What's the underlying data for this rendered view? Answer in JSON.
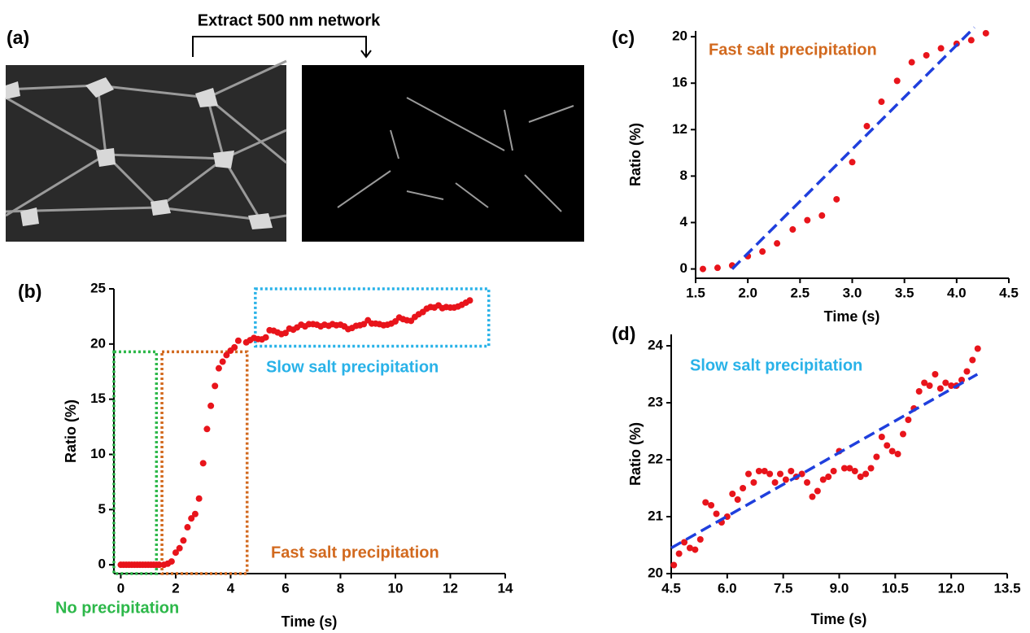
{
  "panel_a": {
    "label": "(a)",
    "annotation": "Extract 500 nm network"
  },
  "chart_data": [
    {
      "type": "scatter",
      "label": "(b)",
      "xlabel": "Time (s)",
      "ylabel": "Ratio (%)",
      "color": "#e8141b",
      "xlim": [
        -0.25,
        14
      ],
      "ylim": [
        -0.8,
        25
      ],
      "xticks": [
        0,
        2,
        4,
        6,
        8,
        10,
        12,
        14
      ],
      "yticks": [
        0,
        5,
        10,
        15,
        20,
        25
      ],
      "x": [
        0,
        0.1,
        0.2,
        0.3,
        0.4,
        0.5,
        0.6,
        0.7,
        0.8,
        0.9,
        1.0,
        1.1,
        1.2,
        1.3,
        1.4,
        1.57,
        1.71,
        1.85,
        2.0,
        2.14,
        2.28,
        2.43,
        2.57,
        2.71,
        2.85,
        3.0,
        3.14,
        3.28,
        3.43,
        3.57,
        3.71,
        3.85,
        4.0,
        4.14,
        4.28,
        4.57,
        4.71,
        4.85,
        5.0,
        5.14,
        5.28,
        5.42,
        5.57,
        5.71,
        5.85,
        6.0,
        6.14,
        6.28,
        6.42,
        6.57,
        6.71,
        6.85,
        7.0,
        7.14,
        7.28,
        7.42,
        7.57,
        7.71,
        7.85,
        8.0,
        8.14,
        8.28,
        8.42,
        8.57,
        8.71,
        8.85,
        9.0,
        9.14,
        9.28,
        9.42,
        9.57,
        9.71,
        9.85,
        10.0,
        10.14,
        10.28,
        10.42,
        10.57,
        10.71,
        10.85,
        11.0,
        11.14,
        11.28,
        11.42,
        11.57,
        11.71,
        11.85,
        12.0,
        12.14,
        12.28,
        12.42,
        12.57,
        12.71
      ],
      "values": [
        0,
        0,
        0,
        0,
        0,
        0,
        0,
        0,
        0,
        0,
        0,
        0,
        0,
        0,
        0,
        0,
        0.1,
        0.3,
        1.1,
        1.5,
        2.2,
        3.4,
        4.2,
        4.6,
        6,
        9.2,
        12.3,
        14.4,
        16.2,
        17.8,
        18.4,
        19,
        19.4,
        19.7,
        20.3,
        20.15,
        20.35,
        20.55,
        20.45,
        20.42,
        20.6,
        21.25,
        21.2,
        21.05,
        20.9,
        21.0,
        21.4,
        21.3,
        21.5,
        21.75,
        21.6,
        21.8,
        21.8,
        21.75,
        21.6,
        21.75,
        21.65,
        21.8,
        21.7,
        21.75,
        21.6,
        21.35,
        21.45,
        21.65,
        21.7,
        21.8,
        22.15,
        21.85,
        21.85,
        21.8,
        21.7,
        21.75,
        21.85,
        22.05,
        22.4,
        22.25,
        22.15,
        22.1,
        22.45,
        22.7,
        22.9,
        23.2,
        23.35,
        23.3,
        23.5,
        23.25,
        23.35,
        23.3,
        23.3,
        23.4,
        23.55,
        23.75,
        23.95
      ],
      "annotations": [
        {
          "text": "No precipitation",
          "color": "#2db84a"
        },
        {
          "text": "Fast salt precipitation",
          "color": "#d2691e"
        },
        {
          "text": "Slow salt precipitation",
          "color": "#29b2e8"
        }
      ]
    },
    {
      "type": "scatter",
      "label": "(c)",
      "xlabel": "Time (s)",
      "ylabel": "Ratio (%)",
      "color": "#e8141b",
      "xlim": [
        1.5,
        4.5
      ],
      "ylim": [
        -0.8,
        20.5
      ],
      "xticks": [
        1.5,
        {
          "value": 2,
          "label": "2.0"
        },
        2.5,
        {
          "value": 3,
          "label": "3.0"
        },
        3.5,
        {
          "value": 4,
          "label": "4.0"
        },
        4.5
      ],
      "yticks": [
        0,
        4,
        8,
        12,
        16,
        20
      ],
      "x": [
        1.57,
        1.71,
        1.85,
        2.0,
        2.14,
        2.28,
        2.43,
        2.57,
        2.71,
        2.85,
        3.0,
        3.14,
        3.28,
        3.43,
        3.57,
        3.71,
        3.85,
        4.0,
        4.14,
        4.28
      ],
      "values": [
        0,
        0.1,
        0.3,
        1.1,
        1.5,
        2.2,
        3.4,
        4.2,
        4.6,
        6,
        9.2,
        12.3,
        14.4,
        16.2,
        17.8,
        18.4,
        19,
        19.4,
        19.7,
        20.3
      ],
      "fit": {
        "x": [
          1.85,
          4.17
        ],
        "values": [
          0,
          20.8
        ],
        "color": "#1f3fdd"
      },
      "annotations": [
        {
          "text": "Fast salt precipitation",
          "color": "#d2691e"
        }
      ]
    },
    {
      "type": "scatter",
      "label": "(d)",
      "xlabel": "Time (s)",
      "ylabel": "Ratio (%)",
      "color": "#e8141b",
      "xlim": [
        4.5,
        13.5
      ],
      "ylim": [
        20,
        24.2
      ],
      "xticks": [
        4.5,
        {
          "value": 6,
          "label": "6.0"
        },
        7.5,
        {
          "value": 9,
          "label": "9.0"
        },
        10.5,
        {
          "value": 12,
          "label": "12.0"
        },
        13.5
      ],
      "yticks": [
        20,
        21,
        22,
        23,
        24
      ],
      "x": [
        4.57,
        4.71,
        4.85,
        5.0,
        5.14,
        5.28,
        5.42,
        5.57,
        5.71,
        5.85,
        6.0,
        6.14,
        6.28,
        6.42,
        6.57,
        6.71,
        6.85,
        7.0,
        7.14,
        7.28,
        7.42,
        7.57,
        7.71,
        7.85,
        8.0,
        8.14,
        8.28,
        8.42,
        8.57,
        8.71,
        8.85,
        9.0,
        9.14,
        9.28,
        9.42,
        9.57,
        9.71,
        9.85,
        10.0,
        10.14,
        10.28,
        10.42,
        10.57,
        10.71,
        10.85,
        11.0,
        11.14,
        11.28,
        11.42,
        11.57,
        11.71,
        11.85,
        12.0,
        12.14,
        12.28,
        12.42,
        12.57,
        12.71
      ],
      "values": [
        20.15,
        20.35,
        20.55,
        20.45,
        20.42,
        20.6,
        21.25,
        21.2,
        21.05,
        20.9,
        21.0,
        21.4,
        21.3,
        21.5,
        21.75,
        21.6,
        21.8,
        21.8,
        21.75,
        21.6,
        21.75,
        21.65,
        21.8,
        21.7,
        21.75,
        21.6,
        21.35,
        21.45,
        21.65,
        21.7,
        21.8,
        22.15,
        21.85,
        21.85,
        21.8,
        21.7,
        21.75,
        21.85,
        22.05,
        22.4,
        22.25,
        22.15,
        22.1,
        22.45,
        22.7,
        22.9,
        23.2,
        23.35,
        23.3,
        23.5,
        23.25,
        23.35,
        23.3,
        23.3,
        23.4,
        23.55,
        23.75,
        23.95
      ],
      "fit": {
        "x": [
          4.5,
          12.7
        ],
        "values": [
          20.45,
          23.5
        ],
        "color": "#1f3fdd"
      },
      "annotations": [
        {
          "text": "Slow salt precipitation",
          "color": "#29b2e8"
        }
      ]
    }
  ]
}
